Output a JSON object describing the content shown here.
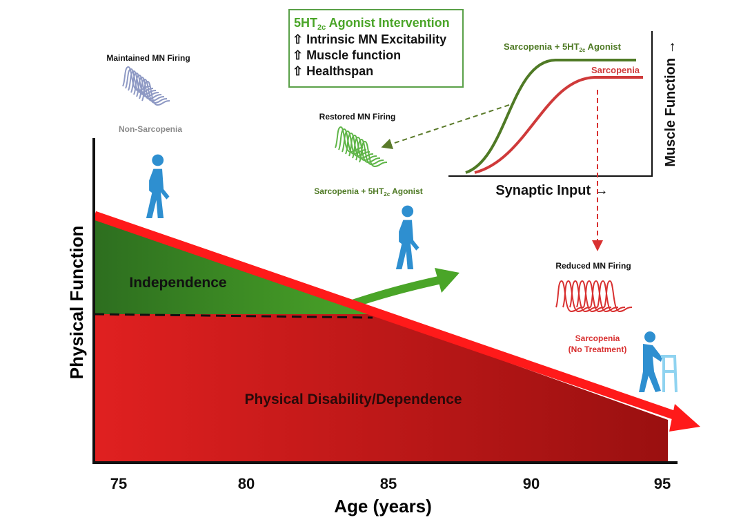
{
  "axes": {
    "x_label": "Age (years)",
    "y_label": "Physical Function",
    "x_ticks": [
      75,
      80,
      85,
      90,
      95
    ]
  },
  "regions": {
    "independence": "Independence",
    "disability": "Physical Disability/Dependence"
  },
  "intervention_box": {
    "title": [
      "5HT",
      "2c",
      " Agonist Intervention"
    ],
    "items": [
      "⇧ Intrinsic MN Excitability",
      "⇧ Muscle function",
      "⇧ Healthspan"
    ]
  },
  "inset": {
    "y_label": "Muscle Function →",
    "x_label": "Synaptic Input →",
    "treated_label": [
      "Sarcopenia + 5HT",
      "2c",
      " Agonist"
    ],
    "untreated_label": "Sarcopenia"
  },
  "firing": {
    "maintained": {
      "title": "Maintained MN  Firing",
      "caption": "Non-Sarcopenia"
    },
    "restored": {
      "title": "Restored MN Firing",
      "caption": [
        "Sarcopenia + 5HT",
        "2c",
        " Agonist"
      ]
    },
    "reduced": {
      "title": "Reduced MN Firing",
      "caption": [
        "Sarcopenia",
        "(No Treatment)"
      ]
    }
  }
}
